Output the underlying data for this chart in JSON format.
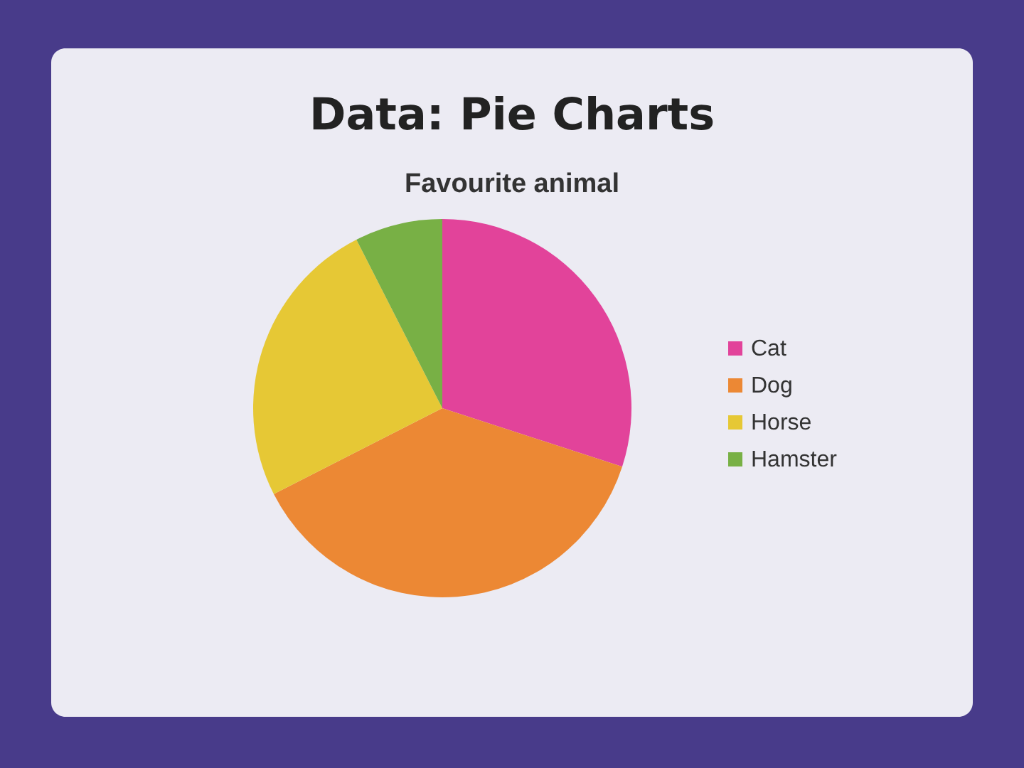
{
  "chart_data": {
    "type": "pie",
    "title": "Data: Pie Charts",
    "subtitle": "Favourite animal",
    "categories": [
      "Cat",
      "Dog",
      "Horse",
      "Hamster"
    ],
    "values": [
      30,
      37.5,
      25,
      7.5
    ],
    "colors": [
      "#e2439a",
      "#ec8834",
      "#e6c835",
      "#78b045"
    ],
    "legend": "right"
  }
}
